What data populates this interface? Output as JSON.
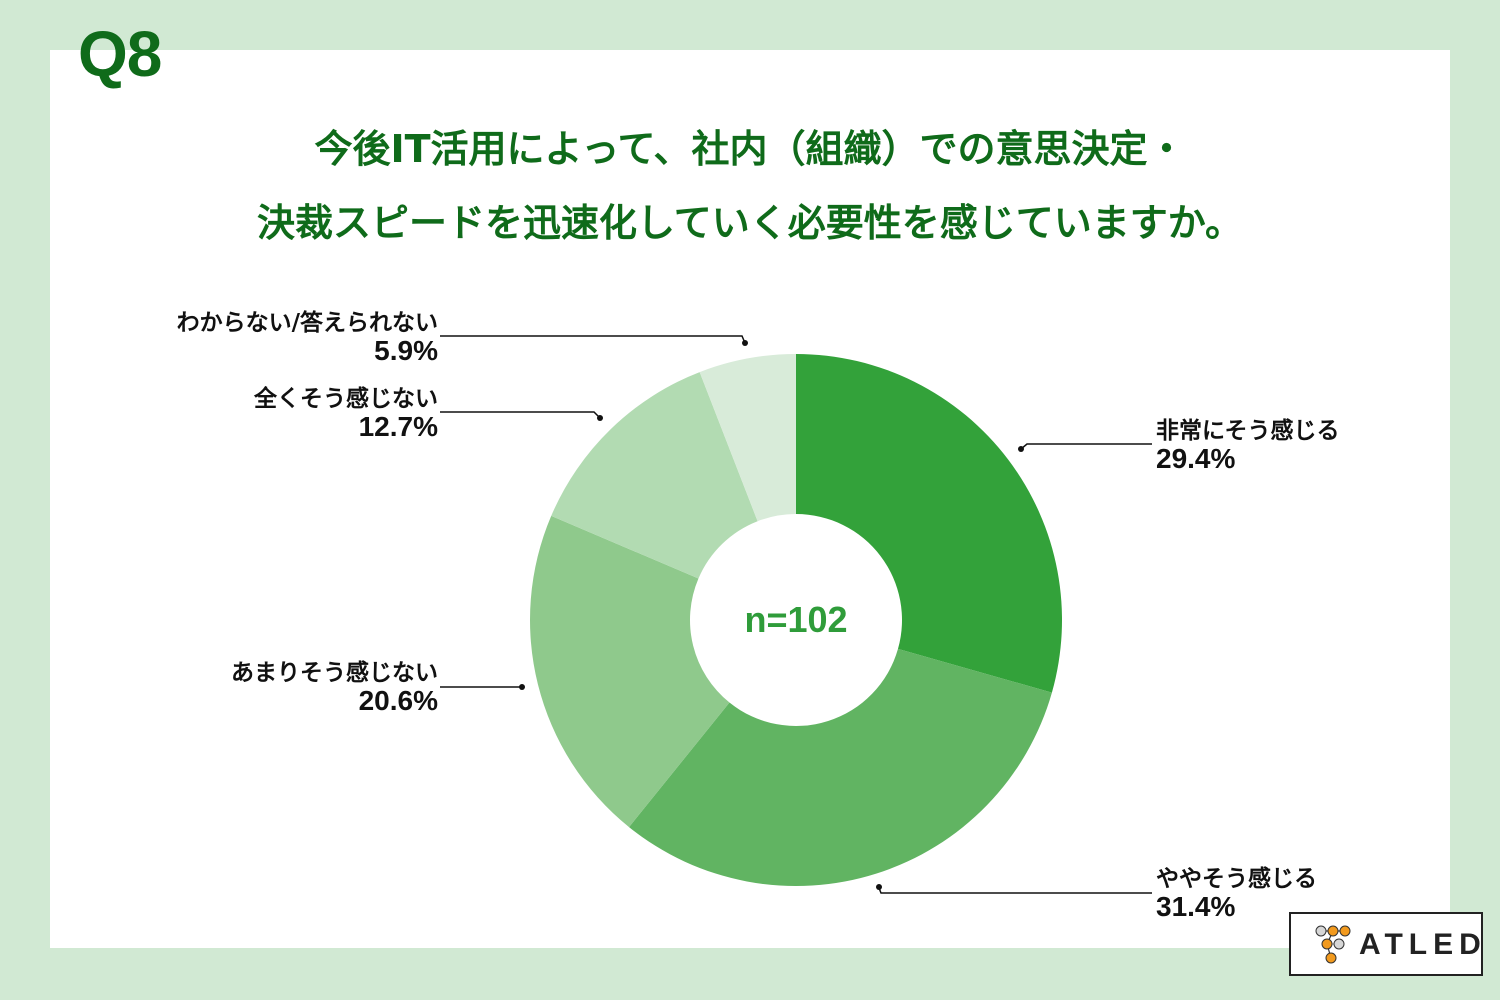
{
  "header": {
    "question_number": "Q8",
    "title_line1": "今後IT活用によって、社内（組織）での意思決定・",
    "title_line2": "決裁スピードを迅速化していく必要性を感じていますか。"
  },
  "colors": {
    "background": "#d1e9d3",
    "title": "#0f6b1a",
    "center_text": "#2f9c3a"
  },
  "chart_data": {
    "type": "pie",
    "subtype": "donut",
    "title": "今後IT活用によって、社内（組織）での意思決定・決裁スピードを迅速化していく必要性を感じていますか。",
    "center_label": "n=102",
    "categories": [
      "非常にそう感じる",
      "ややそう感じる",
      "あまりそう感じない",
      "全くそう感じない",
      "わからない/答えられない"
    ],
    "values": [
      29.4,
      31.4,
      20.6,
      12.7,
      5.9
    ],
    "unit": "%",
    "colors": [
      "#33a23a",
      "#61b462",
      "#8fc98c",
      "#b2dbb2",
      "#d8ebd9"
    ],
    "start_angle_deg": 0,
    "direction": "clockwise"
  },
  "labels": [
    {
      "name": "非常にそう感じる",
      "pct": "29.4%"
    },
    {
      "name": "ややそう感じる",
      "pct": "31.4%"
    },
    {
      "name": "あまりそう感じない",
      "pct": "20.6%"
    },
    {
      "name": "全くそう感じない",
      "pct": "12.7%"
    },
    {
      "name": "わからない/答えられない",
      "pct": "5.9%"
    }
  ],
  "logo": {
    "text": "ATLED"
  }
}
